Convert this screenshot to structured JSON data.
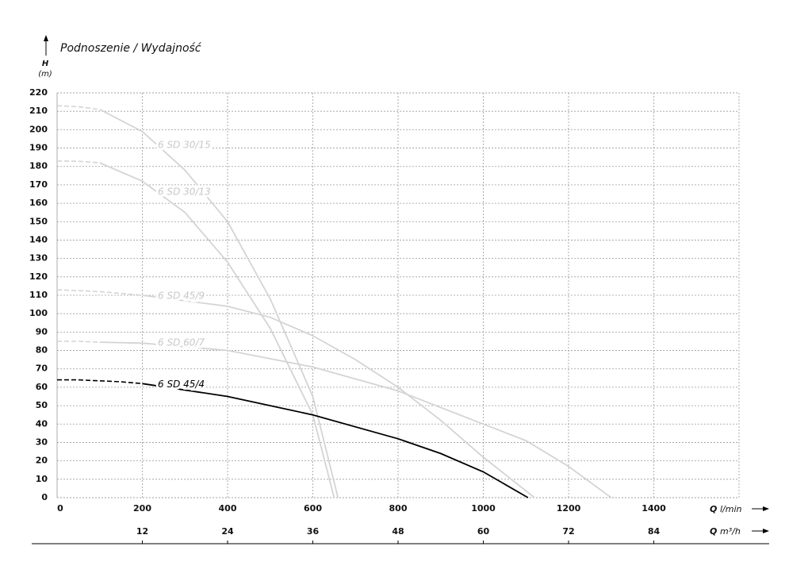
{
  "chart_data": {
    "type": "line",
    "title": "Podnoszenie / Wydajność",
    "y_axis_label": "H",
    "y_axis_unit": "(m)",
    "x_axis_label": "Q",
    "x_axis_unit": "l/min",
    "x2_axis_label": "Q",
    "x2_axis_unit": "m³/h",
    "xlim": [
      0,
      1600
    ],
    "xticks": [
      0,
      200,
      400,
      600,
      800,
      1000,
      1200,
      1400
    ],
    "x2lim": [
      0,
      96
    ],
    "x2ticks": [
      12,
      24,
      36,
      48,
      60,
      72,
      84
    ],
    "ylim": [
      0,
      220
    ],
    "yticks": [
      0,
      10,
      20,
      30,
      40,
      50,
      60,
      70,
      80,
      90,
      100,
      110,
      120,
      130,
      140,
      150,
      160,
      170,
      180,
      190,
      200,
      210,
      220
    ],
    "grid": true,
    "series": [
      {
        "name": "6 SD 30/15",
        "color": "#d4d4d4",
        "dashed": {
          "x": [
            0,
            50,
            100
          ],
          "values": [
            213,
            212.5,
            211
          ]
        },
        "x": [
          100,
          200,
          300,
          400,
          500,
          600,
          659
        ],
        "values": [
          211,
          199,
          178,
          150,
          108,
          55,
          0
        ]
      },
      {
        "name": "6 SD 30/13",
        "color": "#d4d4d4",
        "dashed": {
          "x": [
            0,
            50,
            100
          ],
          "values": [
            183,
            182.8,
            182
          ]
        },
        "x": [
          100,
          200,
          300,
          400,
          500,
          600,
          650
        ],
        "values": [
          182,
          172,
          155,
          128,
          92,
          45,
          0
        ]
      },
      {
        "name": "6 SD 45/9",
        "color": "#d4d4d4",
        "dashed": {
          "x": [
            0,
            100,
            200
          ],
          "values": [
            113,
            112,
            110
          ]
        },
        "x": [
          200,
          400,
          500,
          600,
          700,
          800,
          900,
          1000,
          1120
        ],
        "values": [
          110,
          104,
          98,
          88,
          75,
          60,
          42,
          22,
          0
        ]
      },
      {
        "name": "6 SD 60/7",
        "color": "#d4d4d4",
        "dashed": {
          "x": [
            0,
            50,
            100
          ],
          "values": [
            85,
            85,
            84.5
          ]
        },
        "x": [
          100,
          200,
          400,
          600,
          800,
          1000,
          1100,
          1200,
          1300
        ],
        "values": [
          84.5,
          84,
          80,
          71,
          58,
          40,
          31,
          17,
          0
        ]
      },
      {
        "name": "6 SD 45/4",
        "color": "#000000",
        "dashed": {
          "x": [
            0,
            50,
            100,
            150,
            200
          ],
          "values": [
            64,
            64,
            63.5,
            63,
            62
          ]
        },
        "x": [
          200,
          400,
          600,
          800,
          900,
          1000,
          1105
        ],
        "values": [
          62,
          55,
          45,
          32,
          24,
          14,
          0
        ]
      }
    ]
  }
}
